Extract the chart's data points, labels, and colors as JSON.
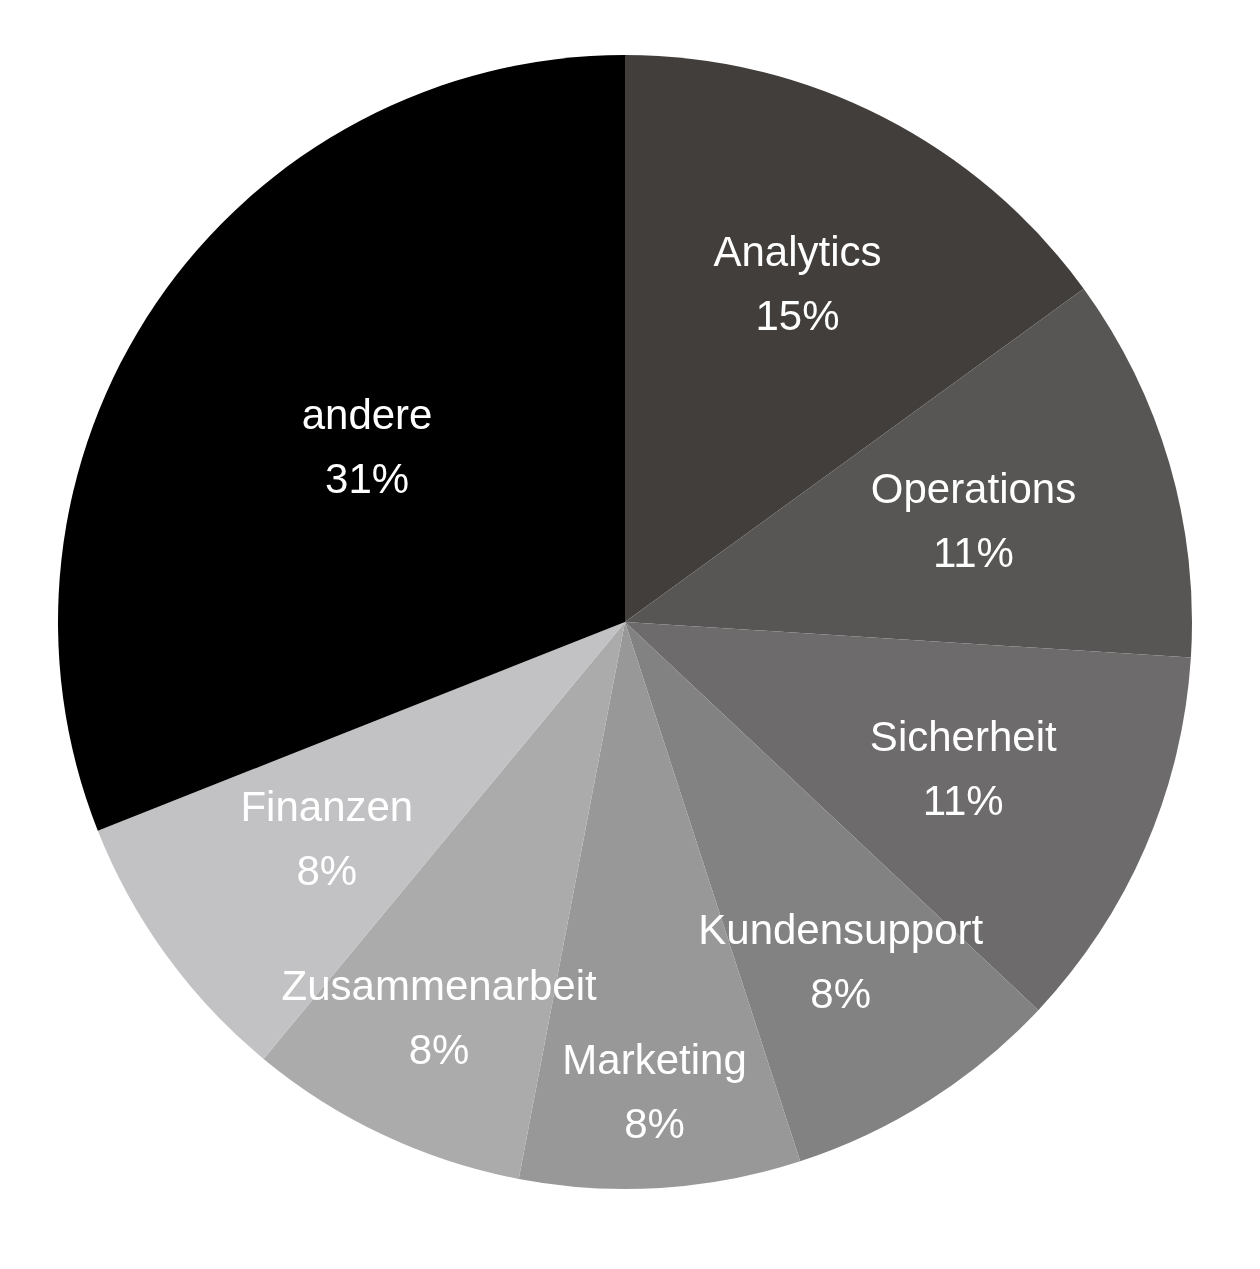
{
  "chart_data": {
    "type": "pie",
    "categories": [
      "Analytics",
      "Operations",
      "Sicherheit",
      "Kundensupport",
      "Marketing",
      "Zusammenarbeit",
      "Finanzen",
      "andere"
    ],
    "values": [
      15,
      11,
      11,
      8,
      8,
      8,
      8,
      31
    ],
    "value_labels": [
      "15%",
      "11%",
      "11%",
      "8%",
      "8%",
      "8%",
      "8%",
      "31%"
    ],
    "colors": [
      "#423e3b",
      "#575654",
      "#6d6b6c",
      "#828282",
      "#989898",
      "#ababab",
      "#c2c2c4",
      "#000000"
    ],
    "legend": false
  }
}
